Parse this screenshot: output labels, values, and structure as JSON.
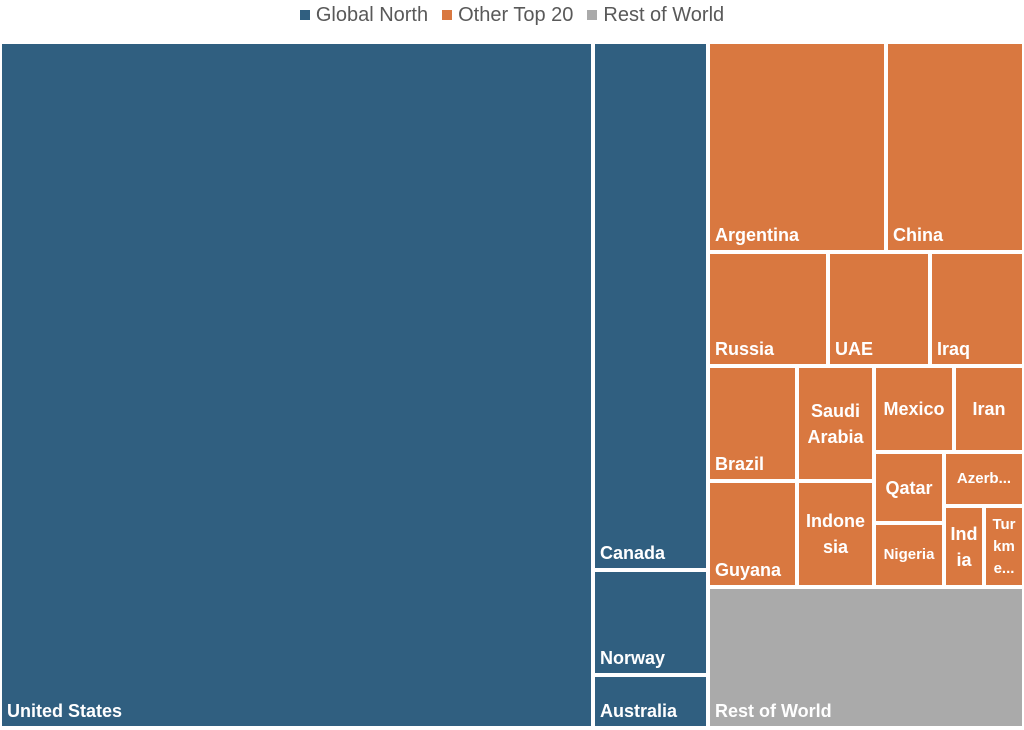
{
  "colors": {
    "global_north": "#305f80",
    "other_top_20": "#d97840",
    "rest_of_world": "#aaaaaa"
  },
  "legend": [
    {
      "label": "Global North",
      "color": "#305f80"
    },
    {
      "label": "Other Top 20",
      "color": "#d97840"
    },
    {
      "label": "Rest of World",
      "color": "#aaaaaa"
    }
  ],
  "chart_data": {
    "type": "treemap",
    "legend_position": "top",
    "groups": [
      {
        "name": "Global North",
        "items": [
          {
            "label": "United States",
            "value": 430
          },
          {
            "label": "Canada",
            "value": 60
          },
          {
            "label": "Norway",
            "value": 12
          },
          {
            "label": "Australia",
            "value": 6
          }
        ]
      },
      {
        "name": "Other Top 20",
        "items": [
          {
            "label": "Argentina",
            "value": 37
          },
          {
            "label": "China",
            "value": 28
          },
          {
            "label": "Russia",
            "value": 13
          },
          {
            "label": "UAE",
            "value": 11
          },
          {
            "label": "Iraq",
            "value": 10
          },
          {
            "label": "Brazil",
            "value": 10
          },
          {
            "label": "Saudi\nArabia",
            "value": 9
          },
          {
            "label": "Mexico",
            "value": 6
          },
          {
            "label": "Iran",
            "value": 5
          },
          {
            "label": "Guyana",
            "value": 9
          },
          {
            "label": "Indone\nsia",
            "value": 9
          },
          {
            "label": "Qatar",
            "value": 4
          },
          {
            "label": "Azerb...",
            "value": 3
          },
          {
            "label": "Nigeria",
            "value": 4
          },
          {
            "label": "Ind\nia",
            "value": 2
          },
          {
            "label": "Tur\nkm\ne...",
            "value": 2
          }
        ]
      },
      {
        "name": "Rest of World",
        "items": [
          {
            "label": "Rest of World",
            "value": 31
          }
        ]
      }
    ]
  }
}
